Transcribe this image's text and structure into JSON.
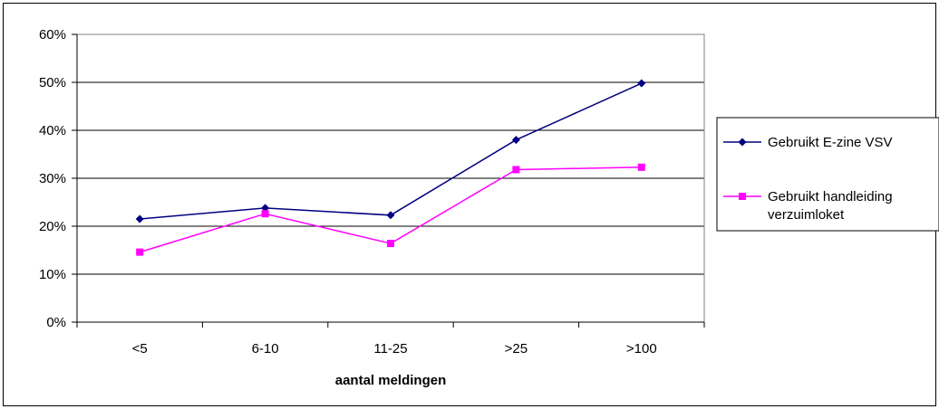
{
  "chart_data": {
    "type": "line",
    "categories": [
      "<5",
      "6-10",
      "11-25",
      ">25",
      ">100"
    ],
    "series": [
      {
        "name": "Gebruikt E-zine VSV",
        "values": [
          21.5,
          23.8,
          22.3,
          38.0,
          49.8
        ],
        "color": "#000080",
        "marker": "diamond"
      },
      {
        "name": "Gebruikt handleiding verzuimloket",
        "values": [
          14.6,
          22.6,
          16.4,
          31.8,
          32.3
        ],
        "color": "#ff00ff",
        "marker": "square"
      }
    ],
    "title": "",
    "xlabel": "aantal meldingen",
    "ylabel": "",
    "ylim": [
      0,
      60
    ],
    "yticks": [
      "0%",
      "10%",
      "20%",
      "30%",
      "40%",
      "50%",
      "60%"
    ],
    "grid": true,
    "legend_position": "right"
  }
}
